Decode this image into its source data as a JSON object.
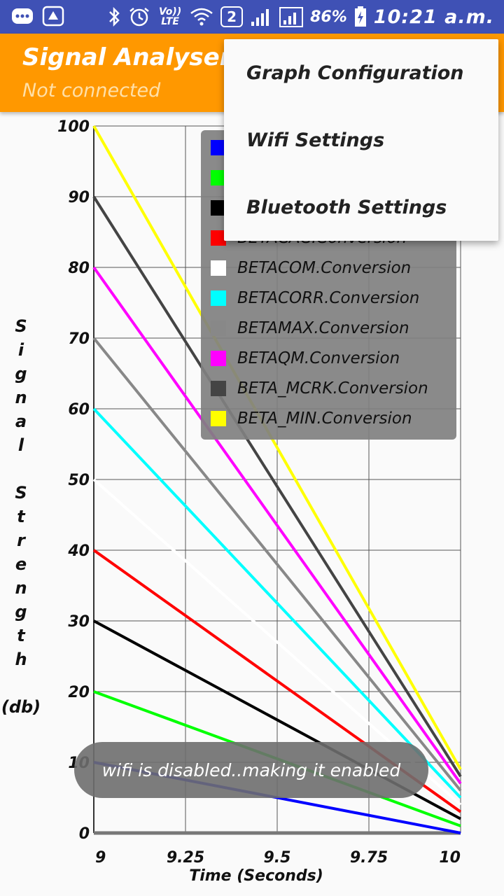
{
  "status_bar": {
    "icons": [
      "chat-icon",
      "app-icon",
      "bluetooth-icon",
      "alarm-icon",
      "volte-icon",
      "wifi-icon",
      "sim2-icon",
      "signal-icon",
      "signal2-icon",
      "battery-icon"
    ],
    "volte_text": "Vo)) LTE",
    "sim_text": "2",
    "battery": "86%",
    "time": "10:21 a.m."
  },
  "app_bar": {
    "title": "Signal Analyser",
    "subtitle": "Not connected"
  },
  "menu": {
    "items": [
      {
        "label": "Graph Configuration"
      },
      {
        "label": "Wifi Settings"
      },
      {
        "label": "Bluetooth Settings"
      }
    ]
  },
  "legend": {
    "items": [
      {
        "label": "",
        "color": "#0000ff"
      },
      {
        "label": "",
        "color": "#00ff00"
      },
      {
        "label": "",
        "color": "#000000"
      },
      {
        "label": "BETACAC.Conversion",
        "color": "#ff0000"
      },
      {
        "label": "BETACOM.Conversion",
        "color": "#ffffff"
      },
      {
        "label": "BETACORR.Conversion",
        "color": "#00ffff"
      },
      {
        "label": "BETAMAX.Conversion",
        "color": "#888888"
      },
      {
        "label": "BETAQM.Conversion",
        "color": "#ff00ff"
      },
      {
        "label": "BETA_MCRK.Conversion",
        "color": "#444444"
      },
      {
        "label": "BETA_MIN.Conversion",
        "color": "#ffff00"
      }
    ]
  },
  "toast": {
    "text": "wifi is disabled..making it enabled"
  },
  "chart_data": {
    "type": "line",
    "xlabel": "Time (Seconds)",
    "ylabel": "Signal Strength (db)",
    "xlim": [
      9,
      10
    ],
    "ylim": [
      0,
      100
    ],
    "x_ticks": [
      "9",
      "9.25",
      "9.5",
      "9.75",
      "10"
    ],
    "y_ticks": [
      "0",
      "10",
      "20",
      "30",
      "40",
      "50",
      "60",
      "70",
      "80",
      "90",
      "100"
    ],
    "grid": true,
    "legend_position": "top-right",
    "series": [
      {
        "color": "#0000ff",
        "x": [
          9,
          10
        ],
        "y": [
          10,
          0
        ]
      },
      {
        "color": "#00ff00",
        "x": [
          9,
          10
        ],
        "y": [
          20,
          1
        ]
      },
      {
        "color": "#000000",
        "x": [
          9,
          10
        ],
        "y": [
          30,
          2
        ]
      },
      {
        "name": "BETACAC.Conversion",
        "color": "#ff0000",
        "x": [
          9,
          10
        ],
        "y": [
          40,
          3
        ]
      },
      {
        "name": "BETACOM.Conversion",
        "color": "#ffffff",
        "x": [
          9,
          10
        ],
        "y": [
          50,
          4
        ]
      },
      {
        "name": "BETACORR.Conversion",
        "color": "#00ffff",
        "x": [
          9,
          10
        ],
        "y": [
          60,
          5
        ]
      },
      {
        "name": "BETAMAX.Conversion",
        "color": "#888888",
        "x": [
          9,
          10
        ],
        "y": [
          70,
          6
        ]
      },
      {
        "name": "BETAQM.Conversion",
        "color": "#ff00ff",
        "x": [
          9,
          10
        ],
        "y": [
          80,
          7
        ]
      },
      {
        "name": "BETA_MCRK.Conversion",
        "color": "#444444",
        "x": [
          9,
          10
        ],
        "y": [
          90,
          8
        ]
      },
      {
        "name": "BETA_MIN.Conversion",
        "color": "#ffff00",
        "x": [
          9,
          10
        ],
        "y": [
          100,
          9
        ]
      }
    ],
    "baseline_series": {
      "color": "#777777",
      "x": [
        9,
        10
      ],
      "y": [
        0,
        0
      ]
    }
  }
}
